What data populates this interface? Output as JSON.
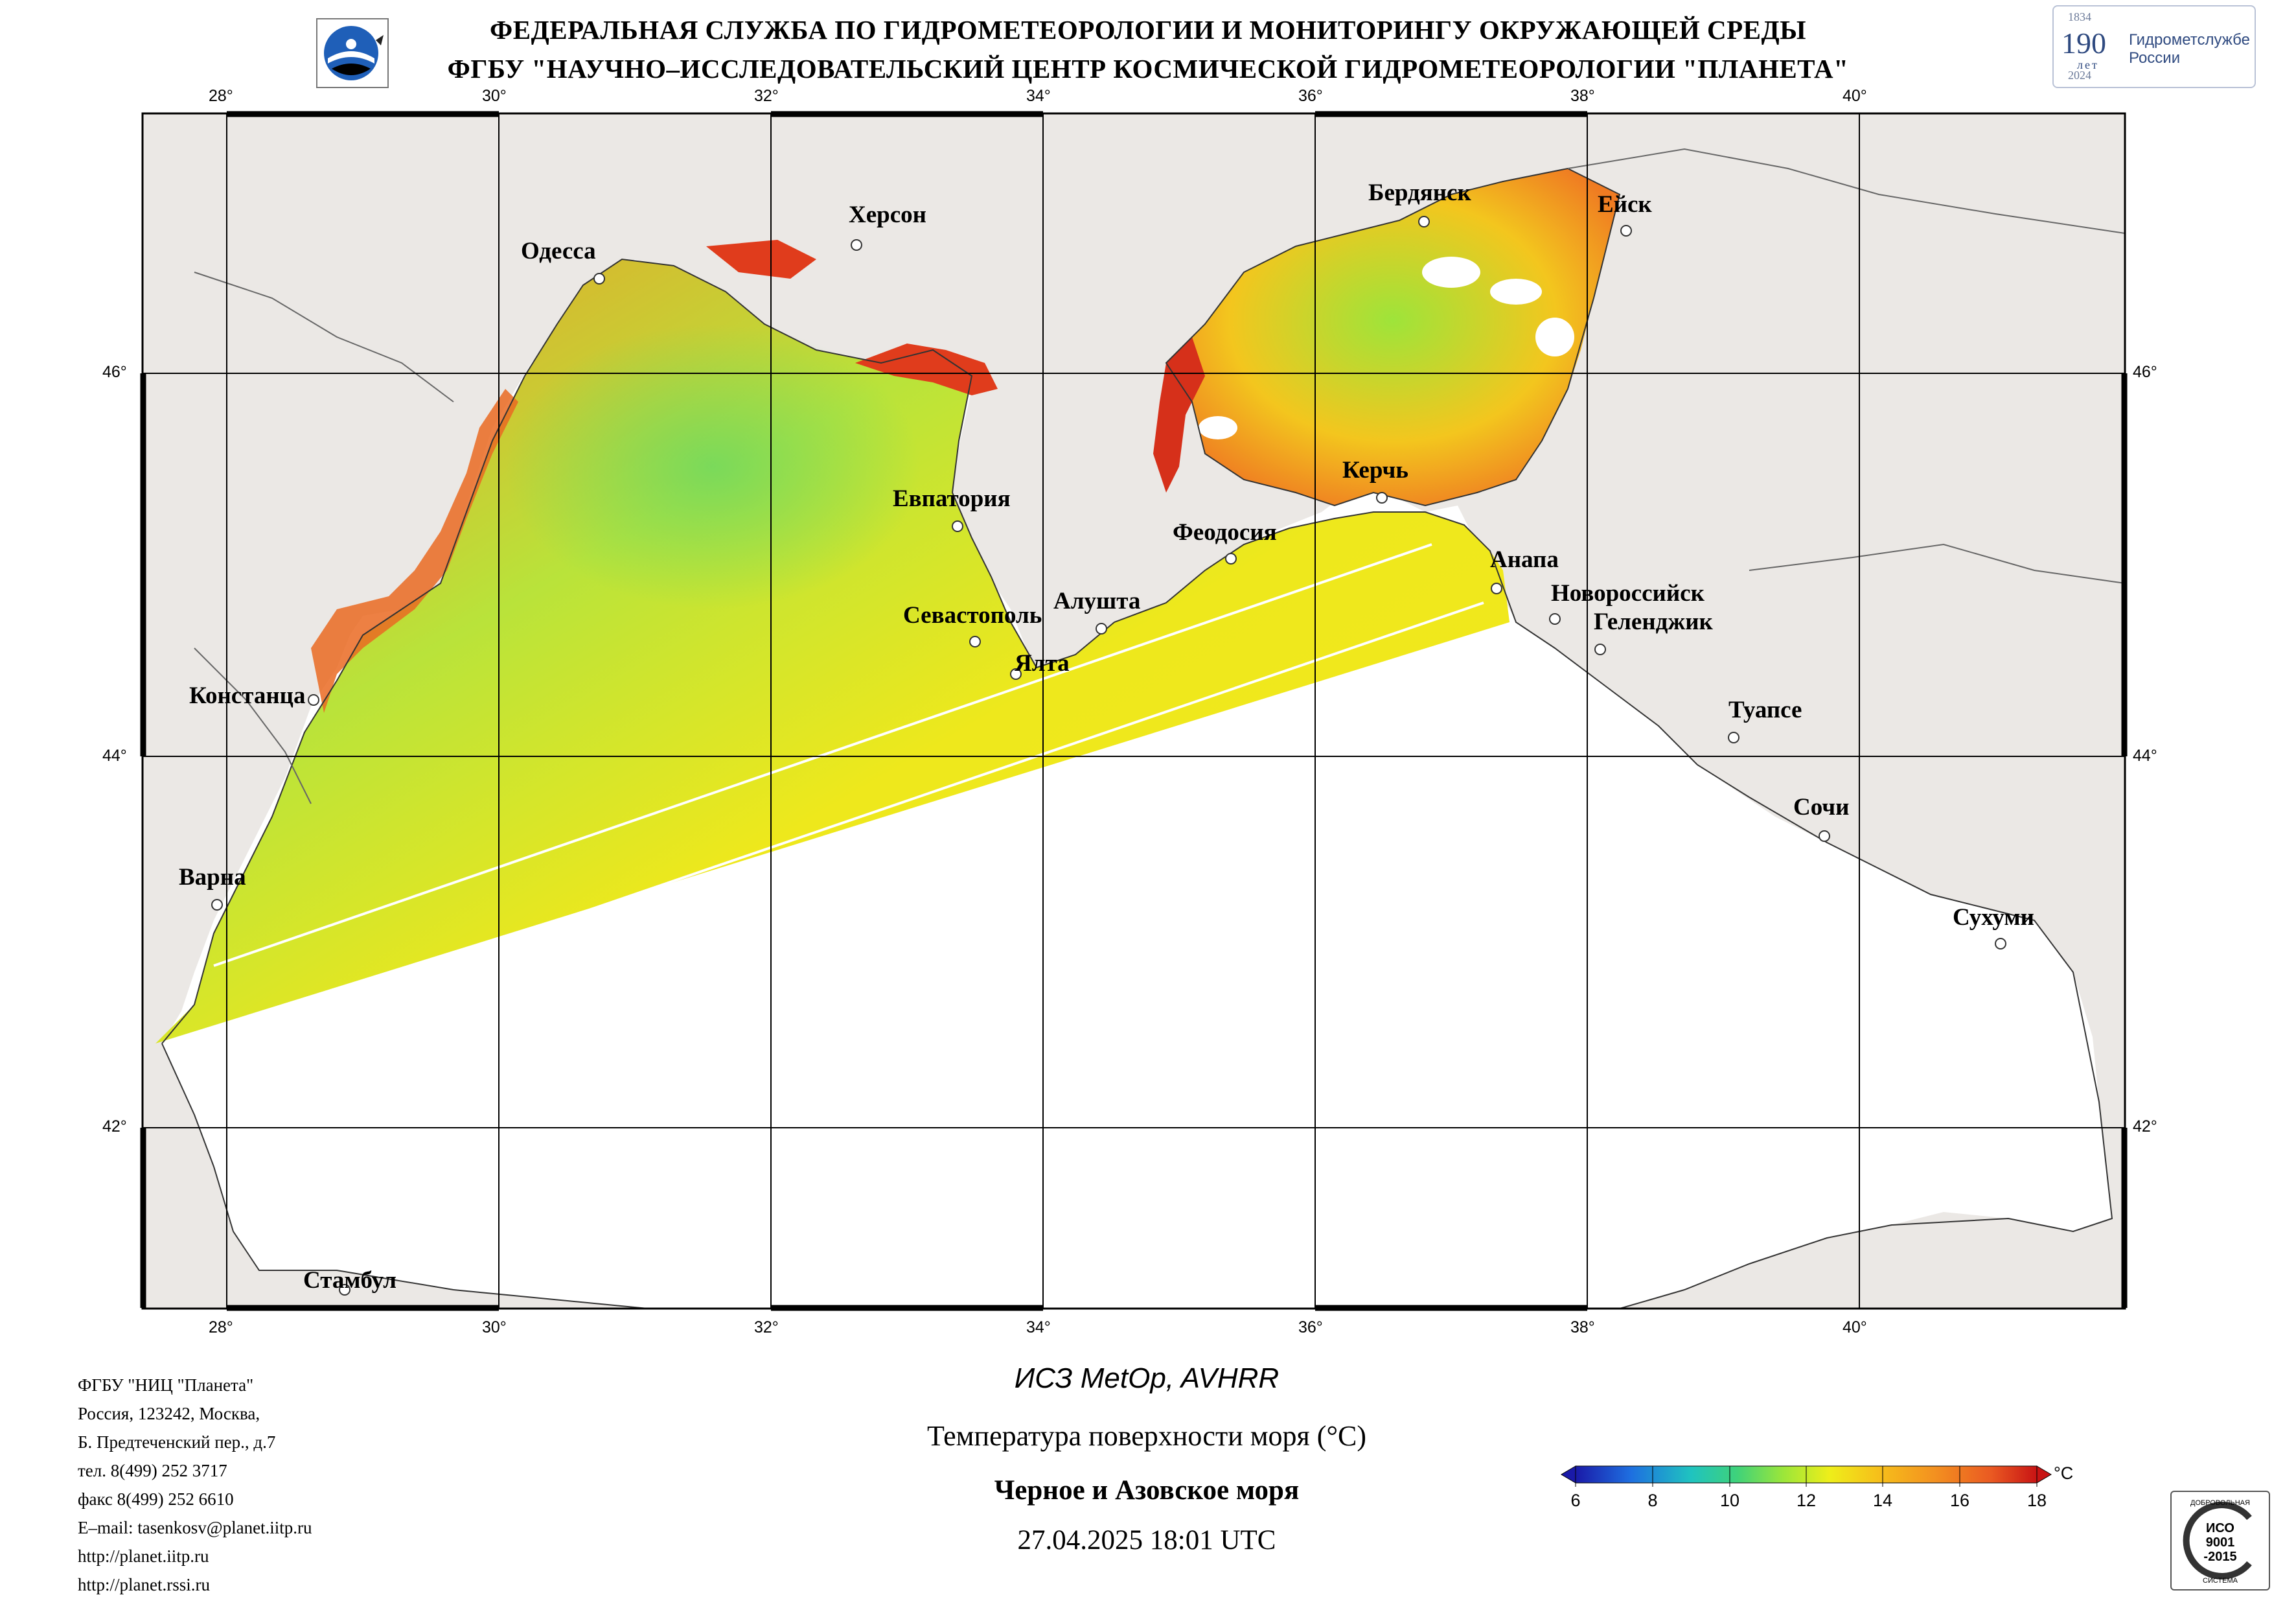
{
  "header": {
    "line1": "ФЕДЕРАЛЬНАЯ СЛУЖБА ПО ГИДРОМЕТЕОРОЛОГИИ И МОНИТОРИНГУ ОКРУЖАЮЩЕЙ СРЕДЫ",
    "line2": "ФГБУ \"НАУЧНО–ИССЛЕДОВАТЕЛЬСКИЙ ЦЕНТР КОСМИЧЕСКОЙ ГИДРОМЕТЕОРОЛОГИИ \"ПЛАНЕТА\""
  },
  "anniversary_logo": {
    "year_start": "1834",
    "number": "190",
    "unit": "лет",
    "year_end": "2024",
    "text_line1": "Гидрометслужбе",
    "text_line2": "России"
  },
  "axes": {
    "lon_ticks": [
      "28°",
      "30°",
      "32°",
      "34°",
      "36°",
      "38°",
      "40°"
    ],
    "lat_ticks": [
      "46°",
      "44°",
      "42°"
    ]
  },
  "cities": [
    "Одесса",
    "Херсон",
    "Бердянск",
    "Ейск",
    "Евпатория",
    "Керчь",
    "Феодосия",
    "Анапа",
    "Новороссийск",
    "Геленджик",
    "Севастополь",
    "Алушта",
    "Ялта",
    "Констанца",
    "Туапсе",
    "Сочи",
    "Варна",
    "Сухуми",
    "Стамбул"
  ],
  "info": [
    "ФГБУ \"НИЦ \"Планета\"",
    "Россия, 123242, Москва,",
    "Б. Предтеченский пер., д.7",
    "тел. 8(499) 252 3717",
    "факс 8(499) 252 6610",
    "E–mail: tasenkosv@planet.iitp.ru",
    "http://planet.iitp.ru",
    "http://planet.rssi.ru"
  ],
  "product": {
    "satellite": "ИСЗ MetOp, AVHRR",
    "parameter": "Температура поверхности моря (°C)",
    "region": "Черное и Азовское моря",
    "datetime": "27.04.2025 18:01 UTC"
  },
  "colorbar": {
    "labels": [
      "6",
      "8",
      "10",
      "12",
      "14",
      "16",
      "18"
    ],
    "unit": "°C",
    "range": [
      6,
      18
    ],
    "colors": [
      "#1a1aa8",
      "#1e6fe0",
      "#1fc3c0",
      "#3fd27a",
      "#9be63a",
      "#eeee1a",
      "#f6c21a",
      "#f39020",
      "#ea5a22",
      "#c81414"
    ]
  },
  "colors": {
    "land": "#ebe8e5",
    "sea_no_data": "#ffffff",
    "grid": "#000000"
  },
  "iso_badge": {
    "top": "ДОБРОВОЛЬНАЯ",
    "line1": "ИСО",
    "line2": "9001",
    "line3": "-2015",
    "bottom": "СИСТЕМА"
  }
}
